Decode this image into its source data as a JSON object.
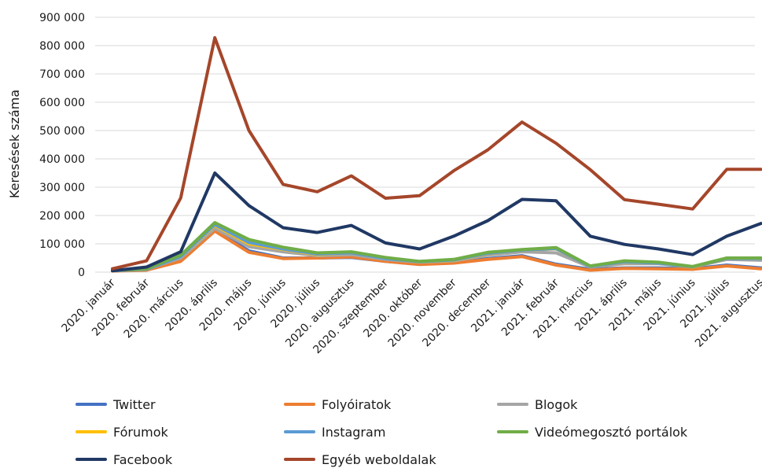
{
  "chart_data": {
    "type": "line",
    "ylabel": "Keresések száma",
    "ylim": [
      0,
      900000
    ],
    "yticks": [
      "0",
      "100 000",
      "200 000",
      "300 000",
      "400 000",
      "500 000",
      "600 000",
      "700 000",
      "800 000",
      "900 000"
    ],
    "categories": [
      "2020. január",
      "2020. február",
      "2020. március",
      "2020. április",
      "2020. május",
      "2020. június",
      "2020. július",
      "2020. augusztus",
      "2020. szeptember",
      "2020. október",
      "2020. november",
      "2020. december",
      "2021. január",
      "2021. február",
      "2021. március",
      "2021. április",
      "2021. május",
      "2021. június",
      "2021. július",
      "2021. augusztus"
    ],
    "grid": true,
    "legend_position": "bottom",
    "series": [
      {
        "name": "Twitter",
        "color": "#4472C4",
        "values": [
          5000,
          8000,
          40000,
          150000,
          75000,
          50000,
          50000,
          52000,
          38000,
          28000,
          33000,
          48000,
          58000,
          28000,
          10000,
          15000,
          15000,
          12000,
          25000,
          15000
        ]
      },
      {
        "name": "Folyóiratok",
        "color": "#ED7D31",
        "values": [
          4000,
          7000,
          38000,
          145000,
          70000,
          48000,
          50000,
          54000,
          38000,
          27000,
          32000,
          45000,
          55000,
          25000,
          7000,
          13000,
          12000,
          10000,
          22000,
          12000
        ]
      },
      {
        "name": "Blogok",
        "color": "#A5A5A5",
        "values": [
          5000,
          10000,
          50000,
          155000,
          90000,
          72000,
          58000,
          62000,
          45000,
          35000,
          40000,
          60000,
          72000,
          68000,
          18000,
          30000,
          30000,
          18000,
          45000,
          42000
        ]
      },
      {
        "name": "Fórumok",
        "color": "#FFC000",
        "values": [
          5000,
          10000,
          55000,
          165000,
          100000,
          80000,
          62000,
          68000,
          48000,
          36000,
          42000,
          65000,
          78000,
          82000,
          20000,
          35000,
          32000,
          18000,
          48000,
          48000
        ]
      },
      {
        "name": "Instagram",
        "color": "#5B9BD5",
        "values": [
          5000,
          10000,
          55000,
          168000,
          105000,
          82000,
          64000,
          68000,
          48000,
          37000,
          43000,
          66000,
          78000,
          83000,
          20000,
          36000,
          32000,
          19000,
          48000,
          48000
        ]
      },
      {
        "name": "Videómegosztó portálok",
        "color": "#70AD47",
        "values": [
          6000,
          12000,
          60000,
          175000,
          115000,
          88000,
          68000,
          72000,
          52000,
          38000,
          45000,
          70000,
          80000,
          87000,
          22000,
          40000,
          35000,
          20000,
          50000,
          50000
        ]
      },
      {
        "name": "Facebook",
        "color": "#203864",
        "values": [
          5000,
          18000,
          72000,
          350000,
          235000,
          157000,
          140000,
          165000,
          103000,
          82000,
          127000,
          182000,
          257000,
          252000,
          127000,
          98000,
          82000,
          62000,
          127000,
          172000
        ]
      },
      {
        "name": "Egyéb weboldalak",
        "color": "#A5462A",
        "values": [
          12000,
          40000,
          262000,
          828000,
          500000,
          310000,
          284000,
          340000,
          261000,
          270000,
          358000,
          432000,
          530000,
          455000,
          362000,
          256000,
          240000,
          223000,
          363000,
          363000
        ]
      }
    ]
  }
}
